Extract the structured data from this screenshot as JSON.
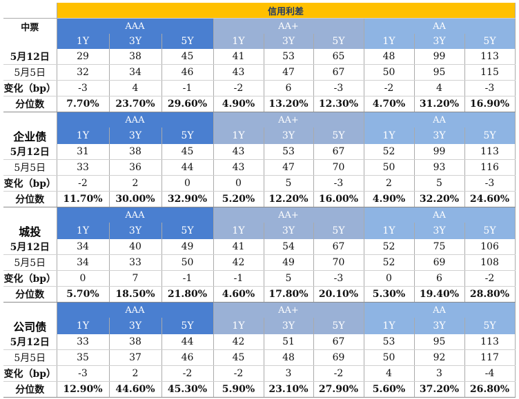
{
  "title": "信用利差",
  "grades": [
    "AAA",
    "AA+",
    "AA"
  ],
  "tenors": [
    "1Y",
    "3Y",
    "5Y"
  ],
  "row_labels": {
    "current": "5月12日",
    "previous": "5月5日",
    "change": "变化（bp）",
    "percentile": "分位数"
  },
  "sections": [
    {
      "name": "中票",
      "label_row": "grade",
      "current": [
        "29",
        "38",
        "45",
        "41",
        "53",
        "65",
        "48",
        "99",
        "113"
      ],
      "previous": [
        "32",
        "34",
        "46",
        "43",
        "47",
        "67",
        "50",
        "95",
        "115"
      ],
      "change": [
        "-3",
        "4",
        "-1",
        "-2",
        "6",
        "-3",
        "-2",
        "4",
        "-3"
      ],
      "percentile": [
        "7.70%",
        "23.70%",
        "29.60%",
        "4.90%",
        "13.20%",
        "12.30%",
        "4.70%",
        "31.20%",
        "16.90%"
      ]
    },
    {
      "name": "企业债",
      "label_row": "tenor",
      "current": [
        "31",
        "38",
        "45",
        "43",
        "53",
        "67",
        "52",
        "99",
        "113"
      ],
      "previous": [
        "33",
        "36",
        "44",
        "43",
        "47",
        "70",
        "50",
        "93",
        "116"
      ],
      "change": [
        "-2",
        "2",
        "0",
        "0",
        "5",
        "-3",
        "2",
        "5",
        "-3"
      ],
      "percentile": [
        "11.70%",
        "30.00%",
        "32.90%",
        "5.20%",
        "12.20%",
        "16.00%",
        "4.90%",
        "32.20%",
        "24.60%"
      ]
    },
    {
      "name": "城投",
      "label_row": "tenor",
      "current": [
        "34",
        "40",
        "49",
        "41",
        "54",
        "67",
        "52",
        "75",
        "106"
      ],
      "previous": [
        "34",
        "33",
        "50",
        "42",
        "49",
        "70",
        "52",
        "69",
        "108"
      ],
      "change": [
        "0",
        "7",
        "-1",
        "-1",
        "5",
        "-3",
        "0",
        "6",
        "-2"
      ],
      "percentile": [
        "5.70%",
        "18.50%",
        "21.80%",
        "4.60%",
        "17.80%",
        "20.10%",
        "5.30%",
        "19.40%",
        "28.80%"
      ]
    },
    {
      "name": "公司债",
      "label_row": "tenor",
      "current": [
        "33",
        "38",
        "44",
        "42",
        "51",
        "67",
        "53",
        "95",
        "113"
      ],
      "previous": [
        "35",
        "37",
        "46",
        "45",
        "48",
        "69",
        "50",
        "92",
        "117"
      ],
      "change": [
        "-3",
        "2",
        "-2",
        "-2",
        "3",
        "-2",
        "4",
        "3",
        "-4"
      ],
      "percentile": [
        "12.90%",
        "44.60%",
        "45.30%",
        "5.90%",
        "23.10%",
        "27.90%",
        "5.60%",
        "37.20%",
        "26.80%"
      ]
    }
  ],
  "colors": {
    "title_bg": "#ffc000",
    "title_text": "#1f3864",
    "aaa_header": "#4a7fd0",
    "aa_plus_header": "#9ab1d6",
    "aa_header": "#8eb4e3"
  }
}
